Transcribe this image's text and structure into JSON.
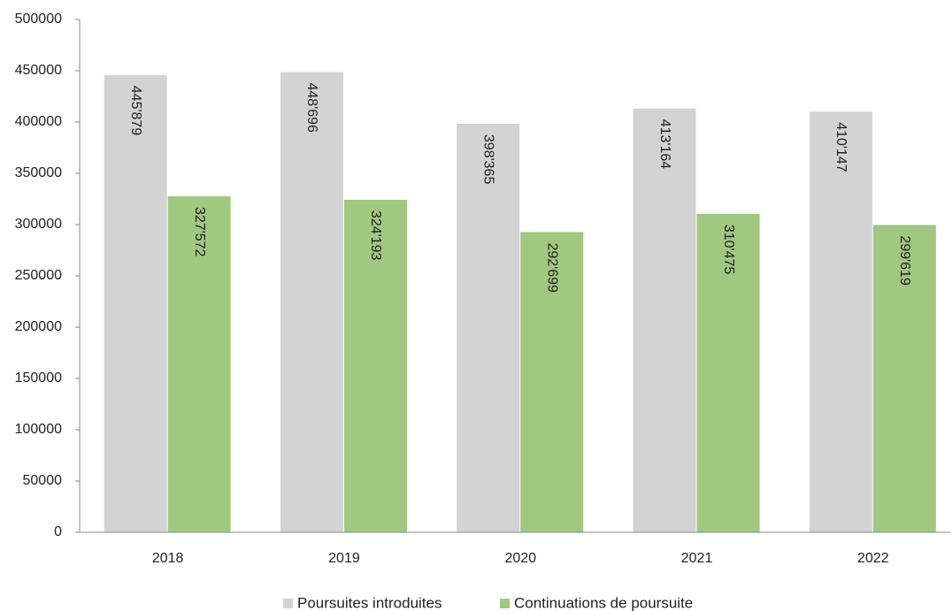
{
  "chart_data": {
    "type": "bar",
    "categories": [
      "2018",
      "2019",
      "2020",
      "2021",
      "2022"
    ],
    "series": [
      {
        "name": "Poursuites introduites",
        "color": "#d3d3d3",
        "values": [
          445879,
          448696,
          398365,
          413164,
          410147
        ],
        "value_labels": [
          "445'879",
          "448'696",
          "398'365",
          "413'164",
          "410'147"
        ]
      },
      {
        "name": "Continuations de poursuite",
        "color": "#a0c880",
        "values": [
          327572,
          324193,
          292699,
          310475,
          299619
        ],
        "value_labels": [
          "327'572",
          "324'193",
          "292'699",
          "310'475",
          "299'619"
        ]
      }
    ],
    "ylim": [
      0,
      500000
    ],
    "yticks": [
      0,
      50000,
      100000,
      150000,
      200000,
      250000,
      300000,
      350000,
      400000,
      450000,
      500000
    ],
    "grid": false,
    "legend": "bottom"
  }
}
